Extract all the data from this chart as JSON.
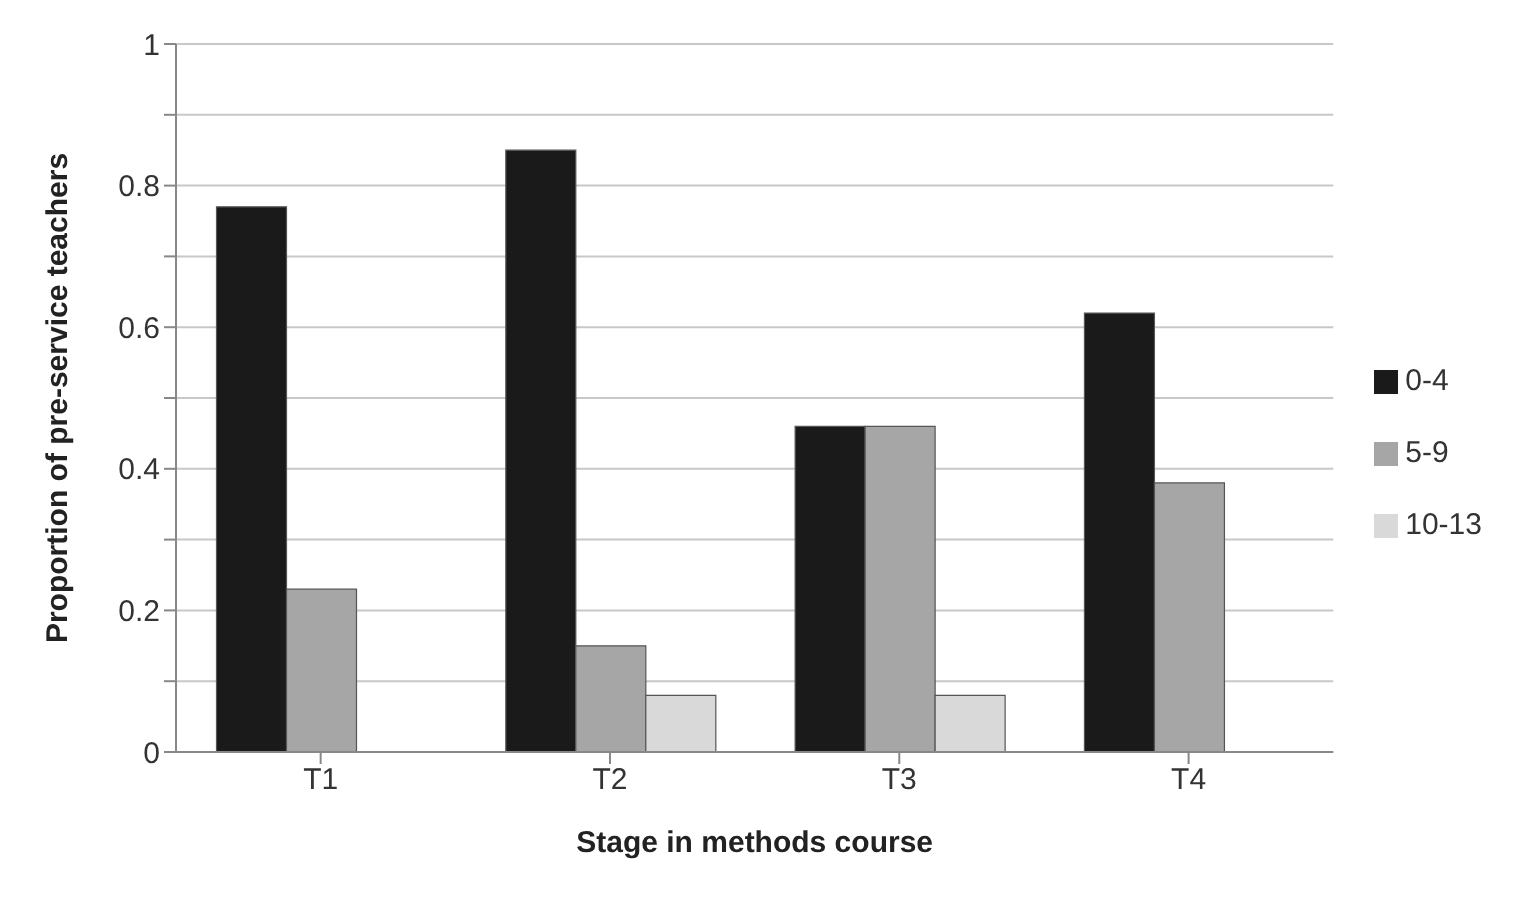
{
  "chart_data": {
    "type": "bar",
    "categories": [
      "T1",
      "T2",
      "T3",
      "T4"
    ],
    "series": [
      {
        "name": "0-4",
        "color": "#1a1a1a",
        "values": [
          0.77,
          0.85,
          0.46,
          0.62
        ]
      },
      {
        "name": "5-9",
        "color": "#a6a6a6",
        "values": [
          0.23,
          0.15,
          0.46,
          0.38
        ]
      },
      {
        "name": "10-13",
        "color": "#d9d9d9",
        "values": [
          0,
          0.08,
          0.08,
          0
        ]
      }
    ],
    "xlabel": "Stage in methods course",
    "ylabel": "Proportion of pre-service teachers",
    "ylim": [
      0,
      1
    ],
    "yticks": [
      0,
      {
        "value": 0.1,
        "label": null
      },
      0.2,
      {
        "value": 0.3,
        "label": null
      },
      0.4,
      {
        "value": 0.5,
        "label": null
      },
      0.6,
      {
        "value": 0.7,
        "label": null
      },
      0.8,
      {
        "value": 0.9,
        "label": null
      },
      1
    ],
    "grid": "y",
    "legend": "right"
  }
}
